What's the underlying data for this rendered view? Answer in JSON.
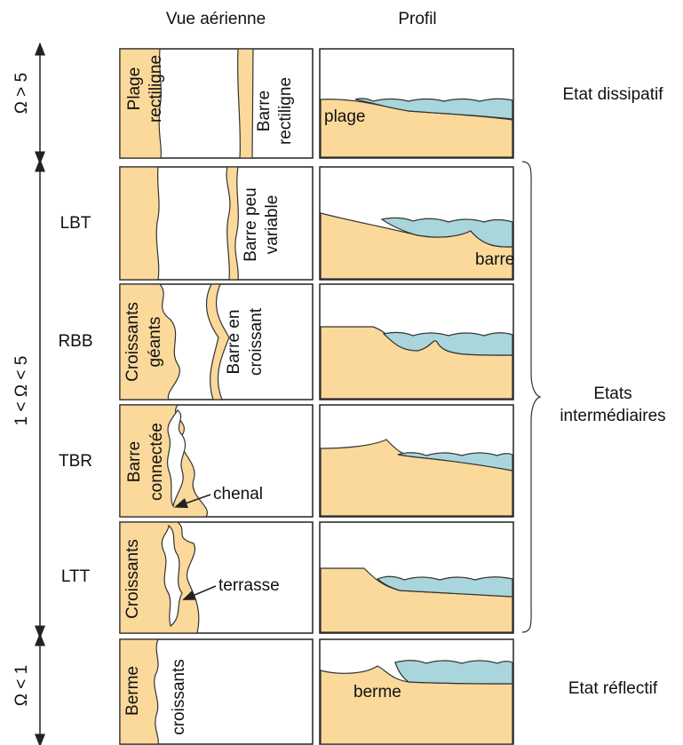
{
  "header": {
    "aerial": "Vue aérienne",
    "profile": "Profil"
  },
  "regimes": [
    {
      "label": "Ω > 5"
    },
    {
      "label": "1 < Ω < 5"
    },
    {
      "label": "Ω < 1"
    }
  ],
  "states": [
    {
      "lines": [
        "Etat dissipatif"
      ]
    },
    {
      "lines": [
        "Etats",
        "intermédiaires"
      ]
    },
    {
      "lines": [
        "Etat réflectif"
      ]
    }
  ],
  "rows": [
    {
      "aerial_labels": [
        {
          "lines": [
            "Plage",
            "rectiligne"
          ]
        },
        {
          "lines": [
            "Barre",
            "rectiligne"
          ]
        }
      ],
      "profile_label": "plage"
    },
    {
      "code": "LBT",
      "aerial_labels": [
        {
          "lines": [
            "Barre peu",
            "variable"
          ]
        }
      ],
      "profile_label": "barre"
    },
    {
      "code": "RBB",
      "aerial_labels": [
        {
          "lines": [
            "Croissants",
            "géants"
          ]
        },
        {
          "lines": [
            "Barre en",
            "croissant"
          ]
        }
      ]
    },
    {
      "code": "TBR",
      "aerial_labels": [
        {
          "lines": [
            "Barre",
            "connectée"
          ]
        }
      ],
      "callout": "chenal"
    },
    {
      "code": "LTT",
      "aerial_labels": [
        {
          "lines": [
            "Croissants"
          ]
        }
      ],
      "callout": "terrasse"
    },
    {
      "aerial_labels": [
        {
          "lines": [
            "Berme"
          ]
        },
        {
          "lines": [
            "croissants"
          ]
        }
      ],
      "profile_label": "berme"
    }
  ]
}
